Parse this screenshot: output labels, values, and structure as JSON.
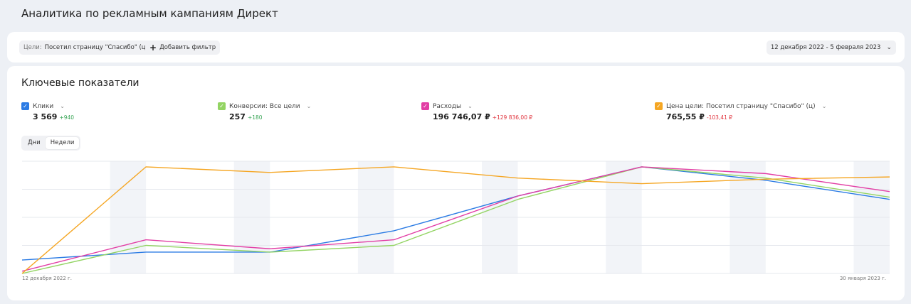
{
  "page": {
    "title": "Аналитика по рекламным кампаниям Директ"
  },
  "filters": {
    "goal_prefix": "Цели:",
    "goal_value": "Посетил страницу \"Спасибо\" (ц)",
    "close_glyph": "✕",
    "add_glyph": "+",
    "add_label": "Добавить фильтр",
    "date_range": "12 декабря 2022 - 5 февраля 2023",
    "chevron_glyph": "⌄"
  },
  "panel": {
    "title": "Ключевые показатели",
    "metrics": [
      {
        "label": "Клики",
        "value": "3 569",
        "delta": "+940",
        "delta_dir": "up",
        "color": "#2b7be4"
      },
      {
        "label": "Конверсии: Все цели",
        "value": "257",
        "delta": "+180",
        "delta_dir": "up",
        "color": "#93d463"
      },
      {
        "label": "Расходы",
        "value": "196 746,07 ₽",
        "delta": "+129 836,00 ₽",
        "delta_dir": "down",
        "color": "#e23ea5"
      },
      {
        "label": "Цена цели: Посетил страницу \"Спасибо\" (ц)",
        "value": "765,55 ₽",
        "delta": "-103,41 ₽",
        "delta_dir": "down",
        "color": "#f5a623"
      }
    ],
    "checkbox_glyph": "✓",
    "chevron_glyph": "⌄",
    "period_options": [
      "Дни",
      "Недели"
    ],
    "period_active": "Недели"
  },
  "chart_data": {
    "type": "line",
    "x_start_label": "12 декабря 2022 г.",
    "x_end_label": "30 января 2023 г.",
    "x": [
      "2022-12-12",
      "2022-12-19",
      "2022-12-26",
      "2023-01-02",
      "2023-01-09",
      "2023-01-16",
      "2023-01-23",
      "2023-01-30"
    ],
    "ylim": [
      0,
      100
    ],
    "grid": true,
    "series": [
      {
        "name": "Клики",
        "color": "#2b7be4",
        "values": [
          12,
          19,
          19,
          38,
          69,
          95,
          83,
          66
        ]
      },
      {
        "name": "Конверсии: Все цели",
        "color": "#93d463",
        "values": [
          0,
          25,
          19,
          25,
          66,
          95,
          85,
          68
        ]
      },
      {
        "name": "Расходы",
        "color": "#e23ea5",
        "values": [
          2,
          30,
          22,
          30,
          69,
          95,
          89,
          73
        ]
      },
      {
        "name": "Цена цели: Посетил страницу \"Спасибо\" (ц)",
        "color": "#f5a623",
        "values": [
          0,
          95,
          90,
          95,
          85,
          80,
          84,
          86
        ]
      }
    ]
  }
}
